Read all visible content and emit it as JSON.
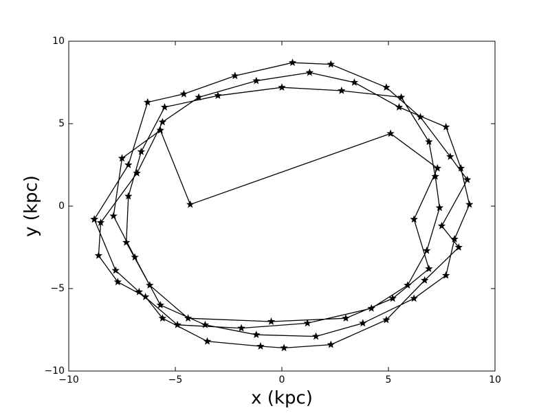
{
  "chart_data": {
    "type": "line",
    "xlabel": "x (kpc)",
    "ylabel": "y (kpc)",
    "xlim": [
      -10,
      10
    ],
    "ylim": [
      -10,
      10
    ],
    "xticks": [
      {
        "value": -10,
        "label": "−10"
      },
      {
        "value": -5,
        "label": "−5"
      },
      0,
      5,
      10
    ],
    "yticks": [
      {
        "value": -10,
        "label": "−10"
      },
      {
        "value": -5,
        "label": "−5"
      },
      0,
      5,
      10
    ],
    "grid": false,
    "marker": "star",
    "x": [
      -8.8,
      -7.2,
      -6.3,
      -4.6,
      -2.2,
      0.5,
      2.3,
      4.9,
      6.5,
      7.9,
      8.7,
      7.5,
      8.3,
      6.7,
      4.9,
      2.3,
      0.1,
      -1.0,
      -3.5,
      -5.6,
      -6.4,
      -7.7,
      -8.6,
      -8.5,
      -6.8,
      -5.6,
      -3.9,
      -1.2,
      1.3,
      3.4,
      5.5,
      7.7,
      8.4,
      8.8,
      8.1,
      7.7,
      6.2,
      3.8,
      1.6,
      -1.2,
      -3.6,
      -5.7,
      -6.9,
      -7.9,
      -7.5,
      -5.7,
      -4.3,
      5.1,
      7.3,
      6.2,
      6.9,
      5.2,
      3.0,
      -0.5,
      -4.4,
      -6.2,
      -7.3,
      -7.2,
      -6.6,
      -5.5,
      -3.0,
      0.0,
      2.8,
      5.6,
      6.9,
      7.2,
      7.4,
      6.8,
      5.9,
      4.2,
      1.2,
      -1.9,
      -4.9,
      -6.7,
      -7.8,
      -8.8
    ],
    "series": [
      {
        "color": "#000000",
        "values": [
          -0.8,
          2.5,
          6.3,
          6.8,
          7.9,
          8.7,
          8.6,
          7.2,
          5.4,
          3.0,
          1.6,
          -1.2,
          -2.5,
          -4.5,
          -6.9,
          -8.4,
          -8.6,
          -8.5,
          -8.2,
          -6.8,
          -5.5,
          -4.6,
          -3.0,
          -1.0,
          2.0,
          5.1,
          6.6,
          7.6,
          8.1,
          7.5,
          6.0,
          4.8,
          2.3,
          0.1,
          -2.0,
          -4.2,
          -5.6,
          -7.1,
          -7.9,
          -7.8,
          -7.2,
          -6.0,
          -3.1,
          -0.6,
          2.9,
          4.6,
          0.1,
          4.4,
          2.3,
          -0.8,
          -3.8,
          -5.6,
          -6.8,
          -7.0,
          -6.8,
          -4.8,
          -2.2,
          0.6,
          3.3,
          6.0,
          6.7,
          7.2,
          7.0,
          6.6,
          3.9,
          1.8,
          -0.1,
          -2.7,
          -4.8,
          -6.2,
          -7.1,
          -7.4,
          -7.2,
          -5.2,
          -3.9,
          -0.8
        ]
      }
    ]
  }
}
